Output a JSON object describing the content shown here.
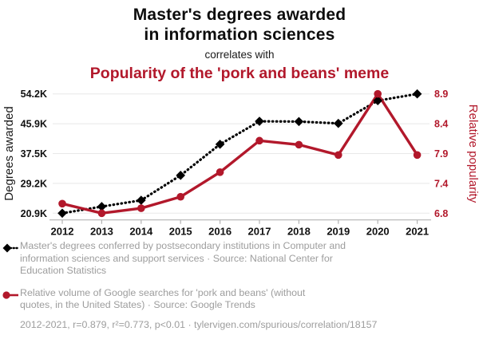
{
  "header": {
    "title_line1": "Master's degrees awarded",
    "title_line2": "in information sciences",
    "connector": "correlates with",
    "subtitle": "Popularity of the 'pork and beans' meme"
  },
  "colors": {
    "accent_red": "#b2182b",
    "series_black": "#000000",
    "legend_text_gray": "#9d9d9d",
    "gridline_gray": "#e8e8e8",
    "axis_gray": "#b3b3b3",
    "tick_label_black": "#111111"
  },
  "chart_data": {
    "type": "line",
    "x": [
      2012,
      2013,
      2014,
      2015,
      2016,
      2017,
      2018,
      2019,
      2020,
      2021
    ],
    "x_tick_labels": [
      "2012",
      "2013",
      "2014",
      "2015",
      "2016",
      "2017",
      "2018",
      "2019",
      "2020",
      "2021"
    ],
    "grid": "horizontal",
    "left_axis": {
      "label": "Degrees awarded",
      "tick_labels_top_to_bottom": [
        "54.2K",
        "45.9K",
        "37.5K",
        "29.2K",
        "20.9K"
      ],
      "range": [
        20925,
        54174
      ]
    },
    "right_axis": {
      "label": "Relative popularity",
      "tick_labels_top_to_bottom": [
        "8.9",
        "8.4",
        "7.9",
        "7.4",
        "6.8"
      ],
      "range": [
        6.833,
        8.917
      ]
    },
    "series": [
      {
        "name": "degrees-awarded",
        "label": "Master's degrees awarded in information sciences",
        "axis": "left",
        "color": "#000000",
        "marker": "diamond",
        "line_style": "dotted",
        "values": [
          20925,
          22777,
          24532,
          31474,
          40135,
          46537,
          46468,
          45945,
          52292,
          54174
        ]
      },
      {
        "name": "pork-and-beans-searches",
        "label": "Popularity of the 'pork and beans' meme",
        "axis": "right",
        "color": "#b2182b",
        "marker": "circle",
        "line_style": "solid",
        "values": [
          7.0,
          6.833,
          6.92,
          7.12,
          7.55,
          8.1,
          8.03,
          7.85,
          8.917,
          7.85
        ]
      }
    ]
  },
  "legend": [
    {
      "series": "degrees-awarded",
      "lines": [
        "Master's degrees conferred by postsecondary institutions in Computer and",
        "information sciences and support services · Source: National Center for",
        "Education Statistics"
      ]
    },
    {
      "series": "pork-and-beans-searches",
      "lines": [
        "Relative volume of Google searches for 'pork and beans' (without",
        "quotes, in the United States) · Source: Google Trends"
      ]
    }
  ],
  "footer": {
    "text": "2012-2021, r=0.879, r²=0.773, p<0.01 · tylervigen.com/spurious/correlation/18157"
  }
}
